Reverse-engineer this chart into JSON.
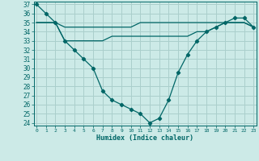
{
  "xlabel": "Humidex (Indice chaleur)",
  "hours": [
    0,
    1,
    2,
    3,
    4,
    5,
    6,
    7,
    8,
    9,
    10,
    11,
    12,
    13,
    14,
    15,
    16,
    17,
    18,
    19,
    20,
    21,
    22,
    23
  ],
  "line1": [
    37,
    36,
    35,
    33,
    32,
    31,
    30,
    27.5,
    26.5,
    26,
    25.5,
    25,
    24,
    24.5,
    26.5,
    29.5,
    31.5,
    33,
    34,
    34.5,
    35,
    35.5,
    35.5,
    34.5
  ],
  "line2": [
    35,
    35,
    35,
    34.5,
    34.5,
    34.5,
    34.5,
    34.5,
    34.5,
    34.5,
    34.5,
    35,
    35,
    35,
    35,
    35,
    35,
    35,
    35,
    35,
    35,
    35,
    35,
    34.5
  ],
  "line3": [
    35,
    35,
    35,
    33,
    33,
    33,
    33,
    33,
    33.5,
    33.5,
    33.5,
    33.5,
    33.5,
    33.5,
    33.5,
    33.5,
    33.5,
    34,
    34,
    34.5,
    35,
    35,
    35,
    34.5
  ],
  "bg_color": "#cceae7",
  "grid_color": "#aacfcc",
  "line_color": "#006666",
  "ylim": [
    24,
    37
  ],
  "yticks": [
    24,
    25,
    26,
    27,
    28,
    29,
    30,
    31,
    32,
    33,
    34,
    35,
    36,
    37
  ],
  "xticks": [
    0,
    1,
    2,
    3,
    4,
    5,
    6,
    7,
    8,
    9,
    10,
    11,
    12,
    13,
    14,
    15,
    16,
    17,
    18,
    19,
    20,
    21,
    22,
    23
  ]
}
